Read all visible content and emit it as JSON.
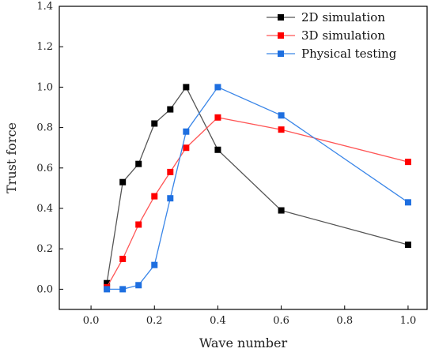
{
  "chart_data": {
    "type": "line",
    "xlabel": "Wave number",
    "ylabel": "Trust force",
    "xlim": [
      -0.1,
      1.06
    ],
    "ylim": [
      -0.1,
      1.4
    ],
    "x_ticks": [
      "0.0",
      "0.2",
      "0.4",
      "0.6",
      "0.8",
      "1.0"
    ],
    "y_ticks": [
      "0.0",
      "0.2",
      "0.4",
      "0.6",
      "0.8",
      "1.0",
      "1.2",
      "1.4"
    ],
    "x_tick_values": [
      0.0,
      0.2,
      0.4,
      0.6,
      0.8,
      1.0
    ],
    "y_tick_values": [
      0.0,
      0.2,
      0.4,
      0.6,
      0.8,
      1.0,
      1.2,
      1.4
    ],
    "grid": false,
    "legend_position": "top-right",
    "series": [
      {
        "name": "2D simulation",
        "color": "#000000",
        "line_color": "#555555",
        "x": [
          0.05,
          0.1,
          0.15,
          0.2,
          0.25,
          0.3,
          0.4,
          0.6,
          1.0
        ],
        "y": [
          0.03,
          0.53,
          0.62,
          0.82,
          0.89,
          1.0,
          0.69,
          0.39,
          0.22
        ]
      },
      {
        "name": "3D simulation",
        "color": "#ff0000",
        "line_color": "#ff5555",
        "x": [
          0.05,
          0.1,
          0.15,
          0.2,
          0.25,
          0.3,
          0.4,
          0.6,
          1.0
        ],
        "y": [
          0.01,
          0.15,
          0.32,
          0.46,
          0.58,
          0.7,
          0.85,
          0.79,
          0.63
        ]
      },
      {
        "name": "Physical testing",
        "color": "#1e6fe0",
        "line_color": "#3a86e8",
        "x": [
          0.05,
          0.1,
          0.15,
          0.2,
          0.25,
          0.3,
          0.4,
          0.6,
          1.0
        ],
        "y": [
          0.0,
          0.0,
          0.02,
          0.12,
          0.45,
          0.78,
          1.0,
          0.86,
          0.43
        ]
      }
    ]
  }
}
